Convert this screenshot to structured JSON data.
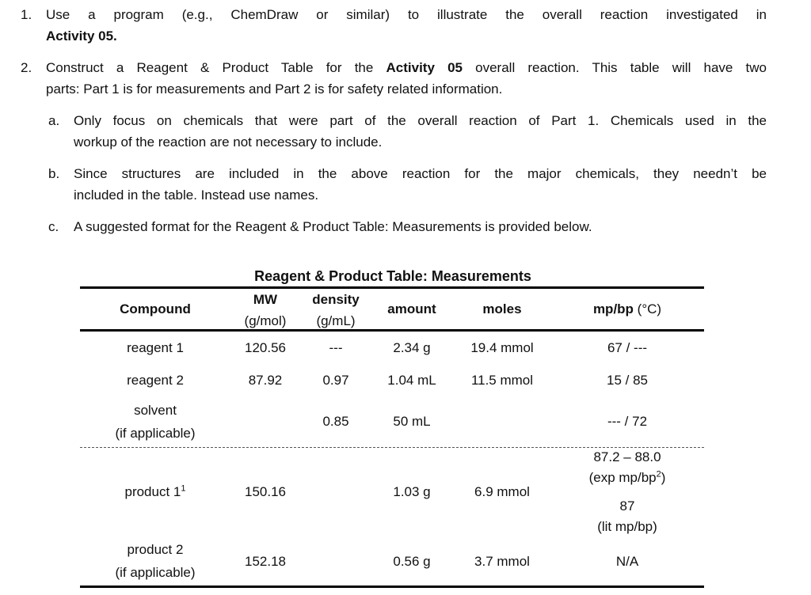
{
  "list": [
    {
      "number": "1.",
      "lines": [
        [
          "Use a program (e.g., ChemDraw or similar) to illustrate the overall reaction investigated in"
        ],
        [
          "Activity 05."
        ]
      ]
    },
    {
      "number": "2.",
      "lines": [
        [
          "Construct a Reagent & Product Table for the ",
          "Activity 05",
          " overall reaction. This table will have two"
        ],
        [
          "parts: Part 1 is for measurements and Part 2 is for safety related information."
        ]
      ],
      "subitems": [
        {
          "letter": "a.",
          "lines": [
            "Only focus on chemicals that were part of the overall reaction of Part 1.  Chemicals used in the",
            "workup of the reaction are not necessary to include."
          ]
        },
        {
          "letter": "b.",
          "lines": [
            "Since structures are included in the above reaction for the major chemicals, they needn’t be",
            "included in the table. Instead use names."
          ]
        },
        {
          "letter": "c.",
          "lines": [
            "A suggested format for the Reagent & Product Table: Measurements is provided below."
          ]
        }
      ]
    }
  ],
  "table": {
    "title": "Reagent & Product Table: Measurements",
    "headers": [
      [
        "Compound"
      ],
      [
        "MW",
        "(g/mol)"
      ],
      [
        "density",
        "(g/mL)"
      ],
      [
        "amount"
      ],
      [
        "moles"
      ],
      [
        "mp/bp",
        " (°C)"
      ]
    ],
    "rows": [
      [
        [
          "reagent 1"
        ],
        "120.56",
        "---",
        "2.34 g",
        "19.4 mmol",
        [
          "67 / ---"
        ]
      ],
      [
        [
          "reagent 2"
        ],
        "87.92",
        "0.97",
        "1.04 mL",
        "11.5 mmol",
        [
          "15 / 85"
        ]
      ],
      [
        [
          "solvent",
          "(if applicable)"
        ],
        null,
        "0.85",
        "50 mL",
        null,
        [
          "--- / 72"
        ]
      ],
      [
        [
          "product 1",
          "1"
        ],
        "150.16",
        null,
        "1.03 g",
        "6.9 mmol",
        [
          "87.2 – 88.0",
          "(exp mp/bp",
          "2",
          ")",
          "87",
          "(lit mp/bp)"
        ]
      ],
      [
        [
          "product 2",
          "(if applicable)"
        ],
        "152.18",
        null,
        "0.56 g",
        "3.7 mmol",
        [
          "N/A"
        ]
      ]
    ]
  }
}
